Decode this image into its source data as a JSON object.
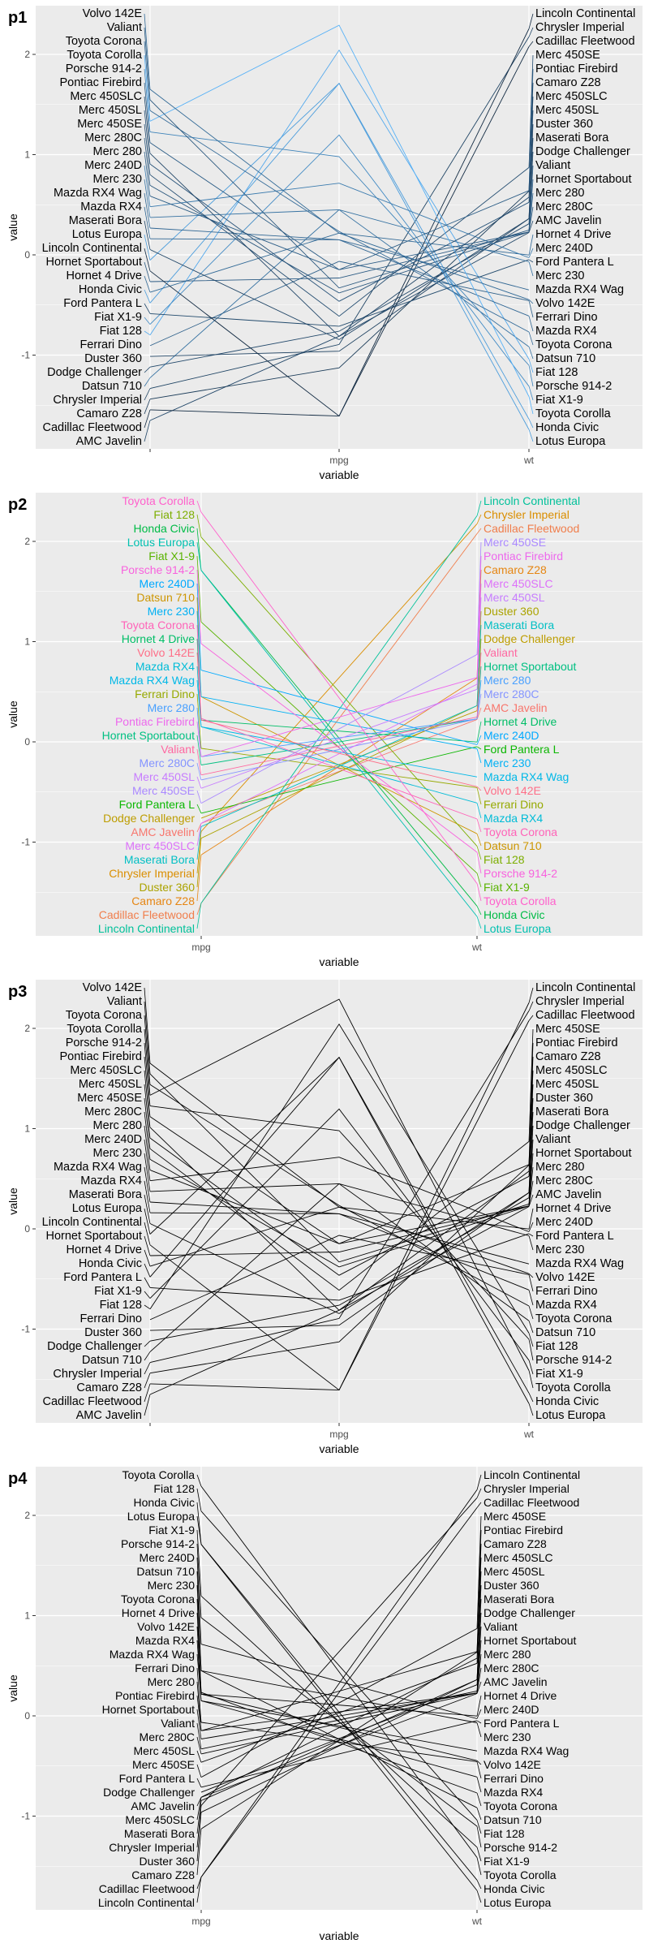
{
  "chart_data": {
    "type": "line",
    "kind": "parallel-coordinates",
    "colors": {
      "panel_bg": "#EBEBEB",
      "grid": "#FFFFFF",
      "gradient_low": "#132B43",
      "gradient_high": "#56B1F7"
    },
    "y_ticks": [
      2,
      1,
      0,
      -1
    ],
    "cars": [
      {
        "name": "AMC Javelin",
        "name_scaled": -1.652,
        "mpg": -0.812,
        "wt": 0.223
      },
      {
        "name": "Cadillac Fleetwood",
        "name_scaled": -1.546,
        "mpg": -1.608,
        "wt": 2.077
      },
      {
        "name": "Camaro Z28",
        "name_scaled": -1.439,
        "mpg": -1.127,
        "wt": 0.636
      },
      {
        "name": "Chrysler Imperial",
        "name_scaled": -1.333,
        "mpg": -0.894,
        "wt": 2.175
      },
      {
        "name": "Datsun 710",
        "name_scaled": -1.226,
        "mpg": 0.45,
        "wt": -0.917
      },
      {
        "name": "Dodge Challenger",
        "name_scaled": -1.119,
        "mpg": -0.762,
        "wt": 0.31
      },
      {
        "name": "Duster 360",
        "name_scaled": -1.013,
        "mpg": -0.961,
        "wt": 0.361
      },
      {
        "name": "Ferrari Dino",
        "name_scaled": -0.906,
        "mpg": -0.065,
        "wt": -0.457
      },
      {
        "name": "Fiat 128",
        "name_scaled": -0.799,
        "mpg": 2.042,
        "wt": -1.04
      },
      {
        "name": "Fiat X1-9",
        "name_scaled": -0.693,
        "mpg": 1.196,
        "wt": -1.31
      },
      {
        "name": "Ford Pantera L",
        "name_scaled": -0.586,
        "mpg": -0.712,
        "wt": -0.048
      },
      {
        "name": "Honda Civic",
        "name_scaled": -0.48,
        "mpg": 1.711,
        "wt": -1.638
      },
      {
        "name": "Hornet 4 Drive",
        "name_scaled": -0.373,
        "mpg": 0.217,
        "wt": -0.002
      },
      {
        "name": "Hornet Sportabout",
        "name_scaled": -0.267,
        "mpg": -0.231,
        "wt": 0.228
      },
      {
        "name": "Lincoln Continental",
        "name_scaled": -0.16,
        "mpg": -1.608,
        "wt": 2.255
      },
      {
        "name": "Lotus Europa",
        "name_scaled": -0.053,
        "mpg": 1.711,
        "wt": -1.742
      },
      {
        "name": "Maserati Bora",
        "name_scaled": 0.053,
        "mpg": -0.845,
        "wt": 0.361
      },
      {
        "name": "Mazda RX4",
        "name_scaled": 0.16,
        "mpg": 0.151,
        "wt": -0.61
      },
      {
        "name": "Mazda RX4 Wag",
        "name_scaled": 0.267,
        "mpg": 0.151,
        "wt": -0.35
      },
      {
        "name": "Merc 230",
        "name_scaled": 0.373,
        "mpg": 0.45,
        "wt": -0.069
      },
      {
        "name": "Merc 240D",
        "name_scaled": 0.48,
        "mpg": 0.715,
        "wt": -0.028
      },
      {
        "name": "Merc 280",
        "name_scaled": 0.586,
        "mpg": -0.148,
        "wt": 0.228
      },
      {
        "name": "Merc 280C",
        "name_scaled": 0.693,
        "mpg": -0.38,
        "wt": 0.228
      },
      {
        "name": "Merc 450SE",
        "name_scaled": 0.799,
        "mpg": -0.612,
        "wt": 0.871
      },
      {
        "name": "Merc 450SL",
        "name_scaled": 0.906,
        "mpg": -0.463,
        "wt": 0.524
      },
      {
        "name": "Merc 450SLC",
        "name_scaled": 1.013,
        "mpg": -0.812,
        "wt": 0.575
      },
      {
        "name": "Pontiac Firebird",
        "name_scaled": 1.119,
        "mpg": -0.148,
        "wt": 0.641
      },
      {
        "name": "Porsche 914-2",
        "name_scaled": 1.226,
        "mpg": 0.98,
        "wt": -1.101
      },
      {
        "name": "Toyota Corolla",
        "name_scaled": 1.333,
        "mpg": 2.291,
        "wt": -1.413
      },
      {
        "name": "Toyota Corona",
        "name_scaled": 1.439,
        "mpg": 0.234,
        "wt": -0.769
      },
      {
        "name": "Valiant",
        "name_scaled": 1.546,
        "mpg": -0.33,
        "wt": 0.248
      },
      {
        "name": "Volvo 142E",
        "name_scaled": 1.652,
        "mpg": 0.217,
        "wt": -0.447
      }
    ],
    "plots": [
      {
        "title": "p1",
        "xlabel": "variable",
        "ylabel": "value",
        "categories": [
          "",
          "mpg",
          "wt"
        ],
        "color": "gradient by mpg",
        "labels": "name axis and wt axis"
      },
      {
        "title": "p2",
        "xlabel": "variable",
        "ylabel": "value",
        "categories": [
          "mpg",
          "wt"
        ],
        "color": "hue by name",
        "labels": "repelled at mpg and wt"
      },
      {
        "title": "p3",
        "xlabel": "variable",
        "ylabel": "value",
        "categories": [
          "",
          "mpg",
          "wt"
        ],
        "color": "black",
        "labels": "name axis and wt axis"
      },
      {
        "title": "p4",
        "xlabel": "variable",
        "ylabel": "value",
        "categories": [
          "mpg",
          "wt"
        ],
        "color": "black",
        "labels": "repelled at mpg and wt"
      }
    ]
  }
}
